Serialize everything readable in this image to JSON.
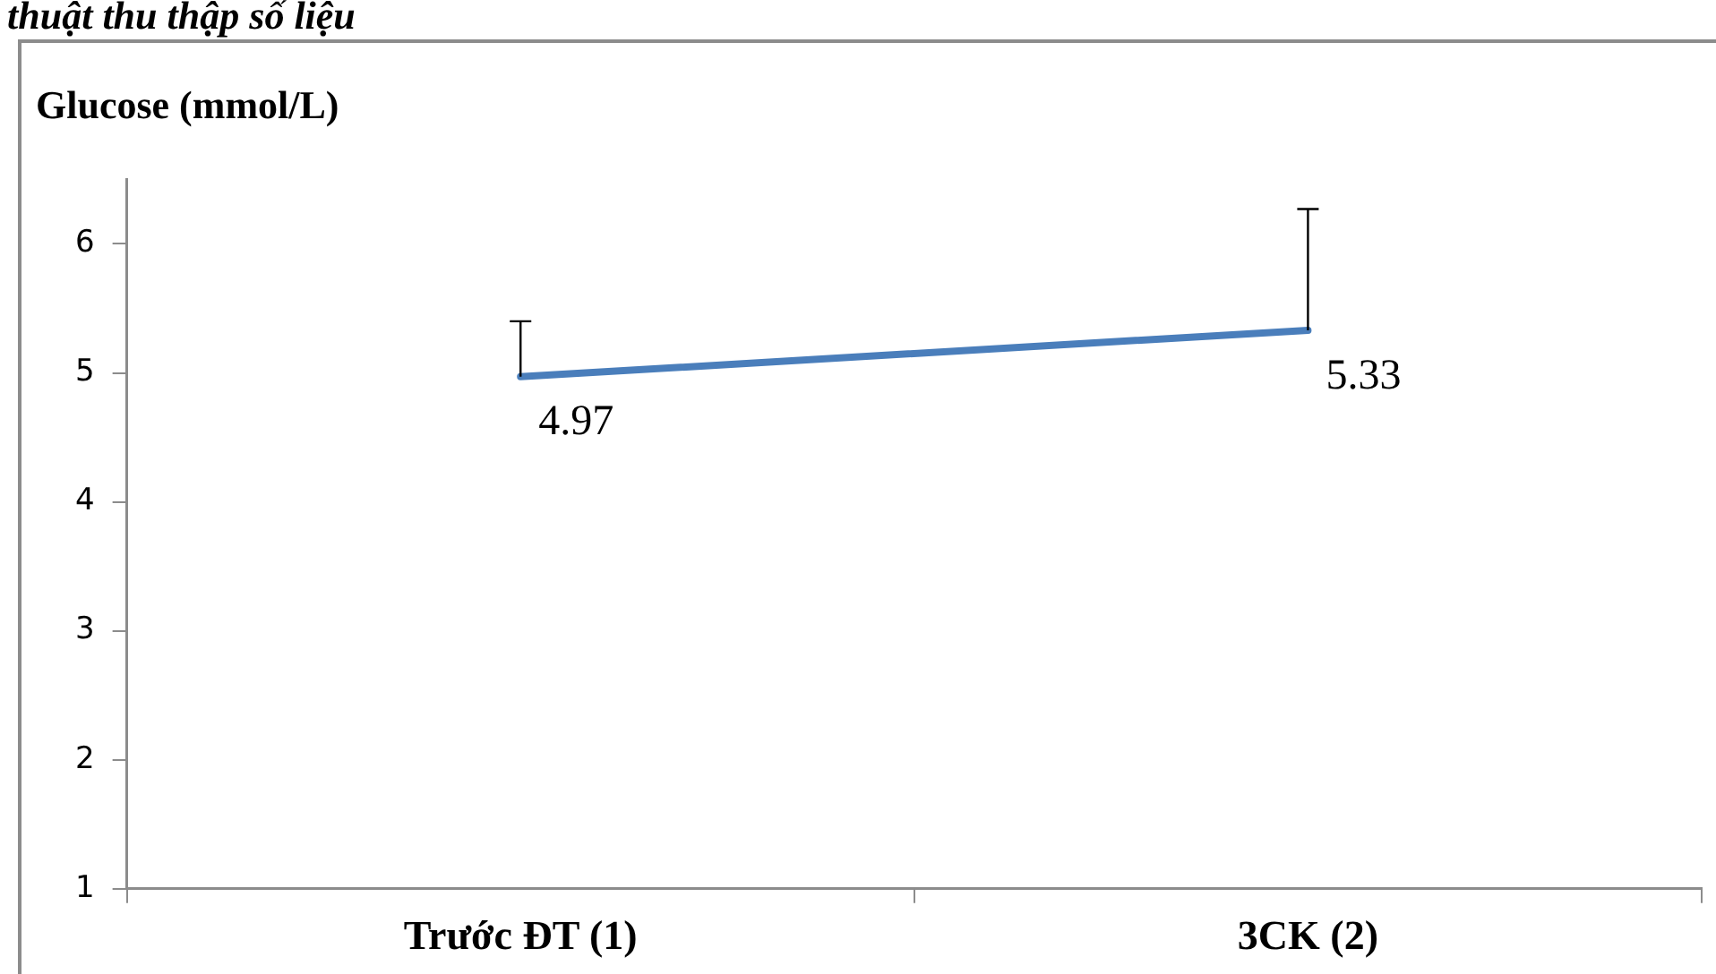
{
  "chart_data": {
    "type": "line",
    "ylabel": "Glucose (mmol/L)",
    "annotations": [
      "thuật thu thập số liệu"
    ],
    "categories": [
      "Trước ĐT (1)",
      "3CK (2)"
    ],
    "series": [
      {
        "color": "#4a7ebb",
        "values": [
          4.97,
          5.33
        ],
        "errors": [
          [
            4.97,
            5.4
          ],
          [
            5.33,
            6.27
          ]
        ]
      }
    ],
    "ylim": [
      1,
      6.5
    ],
    "yticks": [
      1,
      2,
      3,
      4,
      5,
      6
    ],
    "data_labels": true,
    "grid": false,
    "legend": false,
    "marker": "none"
  }
}
